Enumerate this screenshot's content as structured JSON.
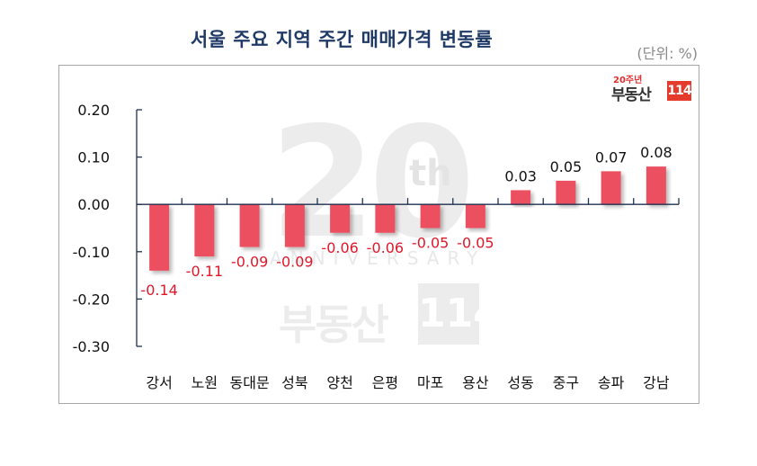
{
  "chart_data": {
    "type": "bar",
    "title": "서울 주요 지역 주간 매매가격 변동률",
    "unit_label": "(단위: %)",
    "xlabel": "",
    "ylabel": "",
    "ylim": [
      -0.3,
      0.2
    ],
    "yticks": [
      "0.20",
      "0.10",
      "0.00",
      "-0.10",
      "-0.20",
      "-0.30"
    ],
    "grid": false,
    "legend": null,
    "categories": [
      "강서",
      "노원",
      "동대문",
      "성북",
      "양천",
      "은평",
      "마포",
      "용산",
      "성동",
      "중구",
      "송파",
      "강남"
    ],
    "values": [
      -0.14,
      -0.11,
      -0.09,
      -0.09,
      -0.06,
      -0.06,
      -0.05,
      -0.05,
      0.03,
      0.05,
      0.07,
      0.08
    ],
    "value_labels": [
      "-0.14",
      "-0.11",
      "-0.09",
      "-0.09",
      "-0.06",
      "-0.06",
      "-0.05",
      "-0.05",
      "0.03",
      "0.05",
      "0.07",
      "0.08"
    ],
    "colors": {
      "bar": "#ec4f5e",
      "negative_label": "#e0182a",
      "positive_label": "#111111",
      "axis": "#1f3050",
      "title": "#1f3a66"
    }
  },
  "header": {
    "title": "서울 주요 지역 주간 매매가격 변동률",
    "unit": "(단위: %)"
  },
  "logo": {
    "anniversary": "20주년",
    "brand": "부동산",
    "number": "114"
  },
  "watermark": {
    "big": "20",
    "suffix": "th",
    "text": "ANNIVERSARY",
    "brand": "부동산",
    "number": "114"
  }
}
